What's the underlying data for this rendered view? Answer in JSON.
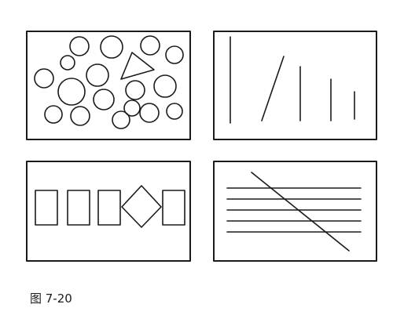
{
  "figure": {
    "caption": "图 7-20",
    "ink_color": "#1a1a1a",
    "panels": [
      {
        "id": "scattered-circles-with-triangle",
        "shapes": [
          "circle",
          "triangle"
        ],
        "circle_count": 18,
        "triangle_count": 1
      },
      {
        "id": "vertical-and-slanted-lines",
        "shapes": [
          "line"
        ],
        "vertical_line_count": 4,
        "slanted_line_count": 1
      },
      {
        "id": "rectangles-with-rotated-square",
        "shapes": [
          "rectangle",
          "diamond"
        ],
        "rectangle_count": 4,
        "diamond_count": 1
      },
      {
        "id": "horizontal-lines-with-diagonal",
        "shapes": [
          "line"
        ],
        "horizontal_line_count": 5,
        "diagonal_line_count": 1
      }
    ]
  }
}
